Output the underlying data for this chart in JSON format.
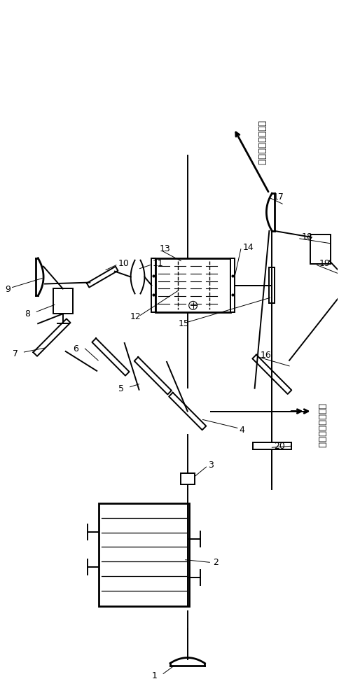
{
  "bg_color": "#ffffff",
  "line_color": "#000000",
  "fig_width": 4.85,
  "fig_height": 10.0,
  "text1": "橙红波段和频激光",
  "text2": "中红外波段闲频光"
}
